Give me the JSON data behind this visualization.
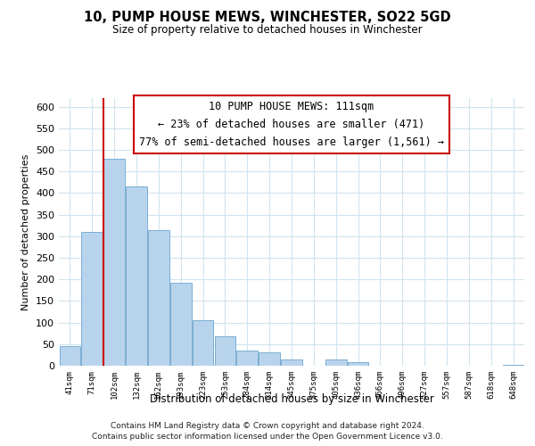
{
  "title": "10, PUMP HOUSE MEWS, WINCHESTER, SO22 5GD",
  "subtitle": "Size of property relative to detached houses in Winchester",
  "xlabel": "Distribution of detached houses by size in Winchester",
  "ylabel": "Number of detached properties",
  "bar_labels": [
    "41sqm",
    "71sqm",
    "102sqm",
    "132sqm",
    "162sqm",
    "193sqm",
    "223sqm",
    "253sqm",
    "284sqm",
    "314sqm",
    "345sqm",
    "375sqm",
    "405sqm",
    "436sqm",
    "466sqm",
    "496sqm",
    "527sqm",
    "557sqm",
    "587sqm",
    "618sqm",
    "648sqm"
  ],
  "bar_values": [
    46,
    311,
    480,
    415,
    314,
    192,
    105,
    69,
    35,
    30,
    14,
    0,
    15,
    8,
    0,
    0,
    0,
    0,
    0,
    0,
    2
  ],
  "bar_color": "#b8d4ec",
  "bar_edge_color": "#7aaed4",
  "red_line_x": 2,
  "annotation_title": "10 PUMP HOUSE MEWS: 111sqm",
  "annotation_line1": "← 23% of detached houses are smaller (471)",
  "annotation_line2": "77% of semi-detached houses are larger (1,561) →",
  "annotation_box_color": "#ffffff",
  "annotation_box_edge": "#cc0000",
  "ylim": [
    0,
    620
  ],
  "yticks": [
    0,
    50,
    100,
    150,
    200,
    250,
    300,
    350,
    400,
    450,
    500,
    550,
    600
  ],
  "grid_color": "#d0e4f0",
  "footer1": "Contains HM Land Registry data © Crown copyright and database right 2024.",
  "footer2": "Contains public sector information licensed under the Open Government Licence v3.0."
}
